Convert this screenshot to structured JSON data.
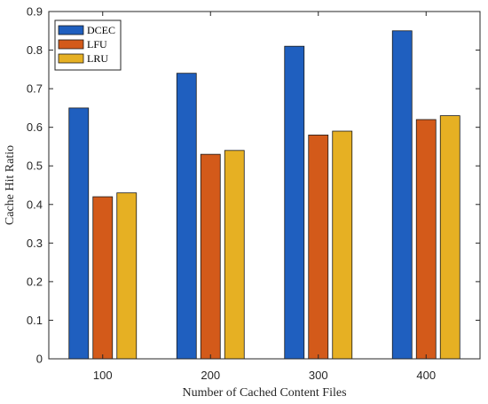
{
  "chart_data": {
    "type": "bar",
    "categories": [
      "100",
      "200",
      "300",
      "400"
    ],
    "series": [
      {
        "name": "DCEC",
        "values": [
          0.65,
          0.74,
          0.81,
          0.85
        ],
        "color": "#1f5fbf"
      },
      {
        "name": "LFU",
        "values": [
          0.42,
          0.53,
          0.58,
          0.62
        ],
        "color": "#d35a1a"
      },
      {
        "name": "LRU",
        "values": [
          0.43,
          0.54,
          0.59,
          0.63
        ],
        "color": "#e6b023"
      }
    ],
    "xlabel": "Number of Cached Content Files",
    "ylabel": "Cache Hit Ratio",
    "ylim": [
      0,
      0.9
    ],
    "yticks": [
      "0",
      "0.1",
      "0.2",
      "0.3",
      "0.4",
      "0.5",
      "0.6",
      "0.7",
      "0.8",
      "0.9"
    ],
    "grid": false,
    "legend_position": "top-left"
  }
}
